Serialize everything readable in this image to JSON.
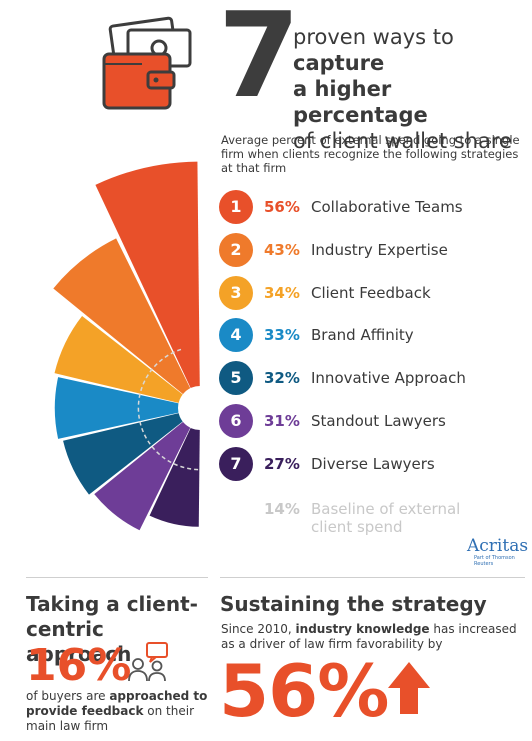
{
  "header": {
    "number": "7",
    "line1_pre": "proven ways to ",
    "line1_bold": "capture",
    "line2_bold": "a higher percentage",
    "line3": "of client wallet share"
  },
  "chart_data": {
    "type": "bar",
    "subtitle": "Average percent of external spend going to a single firm when clients recognize the following strategies at that firm",
    "categories": [
      "Collaborative Teams",
      "Industry Expertise",
      "Client Feedback",
      "Brand Affinity",
      "Innovative Approach",
      "Standout Lawyers",
      "Diverse Lawyers"
    ],
    "values": [
      56,
      43,
      34,
      33,
      32,
      31,
      27
    ],
    "labels": [
      "56%",
      "43%",
      "34%",
      "33%",
      "32%",
      "31%",
      "27%"
    ],
    "numbers": [
      "1",
      "2",
      "3",
      "4",
      "5",
      "6",
      "7"
    ],
    "colors": [
      "#e8502a",
      "#ef7a2b",
      "#f4a227",
      "#1a8ac6",
      "#0f5a82",
      "#6e3d97",
      "#3a1f5c"
    ],
    "baseline": {
      "value": 14,
      "label": "14%",
      "text": "Baseline of external client spend",
      "color": "#c8c8c8"
    }
  },
  "brand": {
    "name": "Acritas",
    "tagline": "Part of Thomson Reuters"
  },
  "section_left": {
    "title": "Taking a client-centric approach",
    "stat": "16%",
    "text_pre": "of buyers are ",
    "text_bold": "approached to provide feedback",
    "text_post": " on their main law firm"
  },
  "section_right": {
    "title": "Sustaining the strategy",
    "text_pre": "Since 2010, ",
    "text_bold": "industry knowledge",
    "text_post": " has increased as a driver of law firm favorability by",
    "stat": "56%"
  },
  "colors": {
    "accent": "#e8502a",
    "text": "#3a3a3a",
    "muted": "#c8c8c8",
    "brand": "#2f6fb3"
  },
  "icons": [
    "wallet-icon",
    "people-feedback-icon",
    "up-arrow-icon"
  ]
}
